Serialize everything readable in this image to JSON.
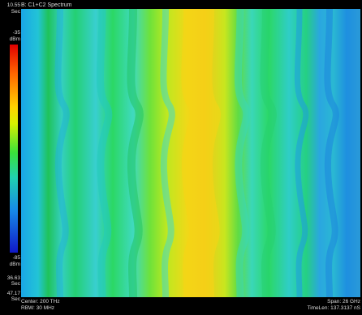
{
  "window": {
    "title": "B: C1+C2 Spectrum"
  },
  "scale": {
    "time_top_value": "10.55",
    "time_top_unit": "Sec",
    "power_top_value": "-35",
    "power_top_unit": "dBm",
    "power_bottom_value": "-85",
    "power_bottom_unit": "dBm",
    "time_mid_value": "36.63",
    "time_mid_unit": "Sec",
    "time_bottom_value": "47.17",
    "time_bottom_unit": "Sec",
    "colors": [
      "#e00000",
      "#ff6600",
      "#ffd200",
      "#39e23a",
      "#20d0b0",
      "#1688e8",
      "#1018c8"
    ]
  },
  "footer": {
    "center": "Center: 200 THz",
    "rbw": "RBW: 30 MHz",
    "span": "Span: 26 GHz",
    "time_len": "TimeLen: 137.3137 nS"
  },
  "chart_data": {
    "type": "heatmap",
    "title": "B: C1+C2 Spectrum",
    "color_range_dbm": [
      -85,
      -35
    ],
    "time_range_sec": [
      10.55,
      47.17
    ]
  }
}
